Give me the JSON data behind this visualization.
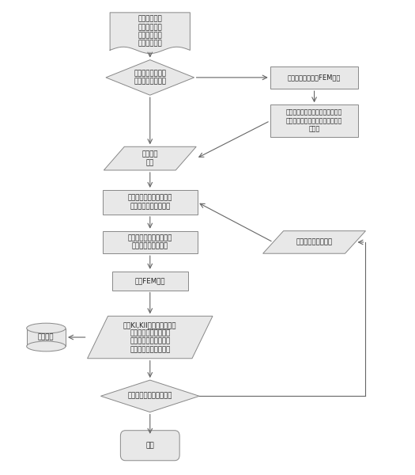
{
  "bg_color": "#ffffff",
  "box_color": "#e8e8e8",
  "box_edge": "#888888",
  "arrow_color": "#666666",
  "text_color": "#222222",
  "font_size": 6.5,
  "start_label": "在管的几何、\n材料、血压等\n数据，以及裂\n纹的萌初方式",
  "diamond1_label": "根据最大拉压力初\n始裂纹或指定位置",
  "fem_label": "无裂纹血管模型的FEM分析",
  "find_stress_label": "寻找内腔最大圆向拉应力的位置及\n裂纹起始位置，计算初始裂纹的位\n置信息",
  "init_crack_label": "初始裂纹\n信息",
  "build_model_label": "建立含有裂纹的血管的物\n理模型并施加边界条件",
  "mesh_label": "划分网格或重建网格，建\n立血管的有限元模型",
  "update_crack_label": "更新的裂纹路径信息",
  "solve_fem_label": "求解FEM模型",
  "compute_label": "提及KI,KII，计算裂纹扩展\n角与裂纹扩展速率；提\n取其他必要数据结果，\n计算新裂纹的尖端位置",
  "store_label": "存储数据",
  "diamond2_label": "裂纹尖端是否已抵近边界",
  "end_label": "结束"
}
